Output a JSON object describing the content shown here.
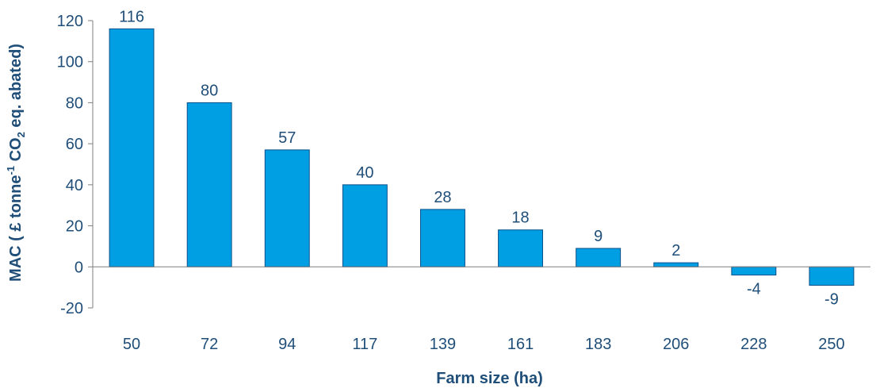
{
  "chart_data": {
    "type": "bar",
    "categories": [
      "50",
      "72",
      "94",
      "117",
      "139",
      "161",
      "183",
      "206",
      "228",
      "250"
    ],
    "values": [
      116,
      80,
      57,
      40,
      28,
      18,
      9,
      2,
      -4,
      -9
    ],
    "data_labels": [
      "116",
      "80",
      "57",
      "40",
      "28",
      "18",
      "9",
      "2",
      "-4",
      "-9"
    ],
    "xlabel": "Farm size (ha)",
    "ylabel": {
      "prefix": "MAC ( £ tonne",
      "superscript": "-1",
      "middle": " CO",
      "subscript": "2",
      "suffix": " eq. abated)"
    },
    "ylim": [
      -20,
      120
    ],
    "yticks": [
      -20,
      0,
      20,
      40,
      60,
      80,
      100,
      120
    ],
    "grid": false,
    "legend": "none",
    "bar_color": "#009FE3",
    "bar_edge_color": "#0B4F8A",
    "text_color": "#1F4E79",
    "axis_color": "#7F7F7F"
  }
}
